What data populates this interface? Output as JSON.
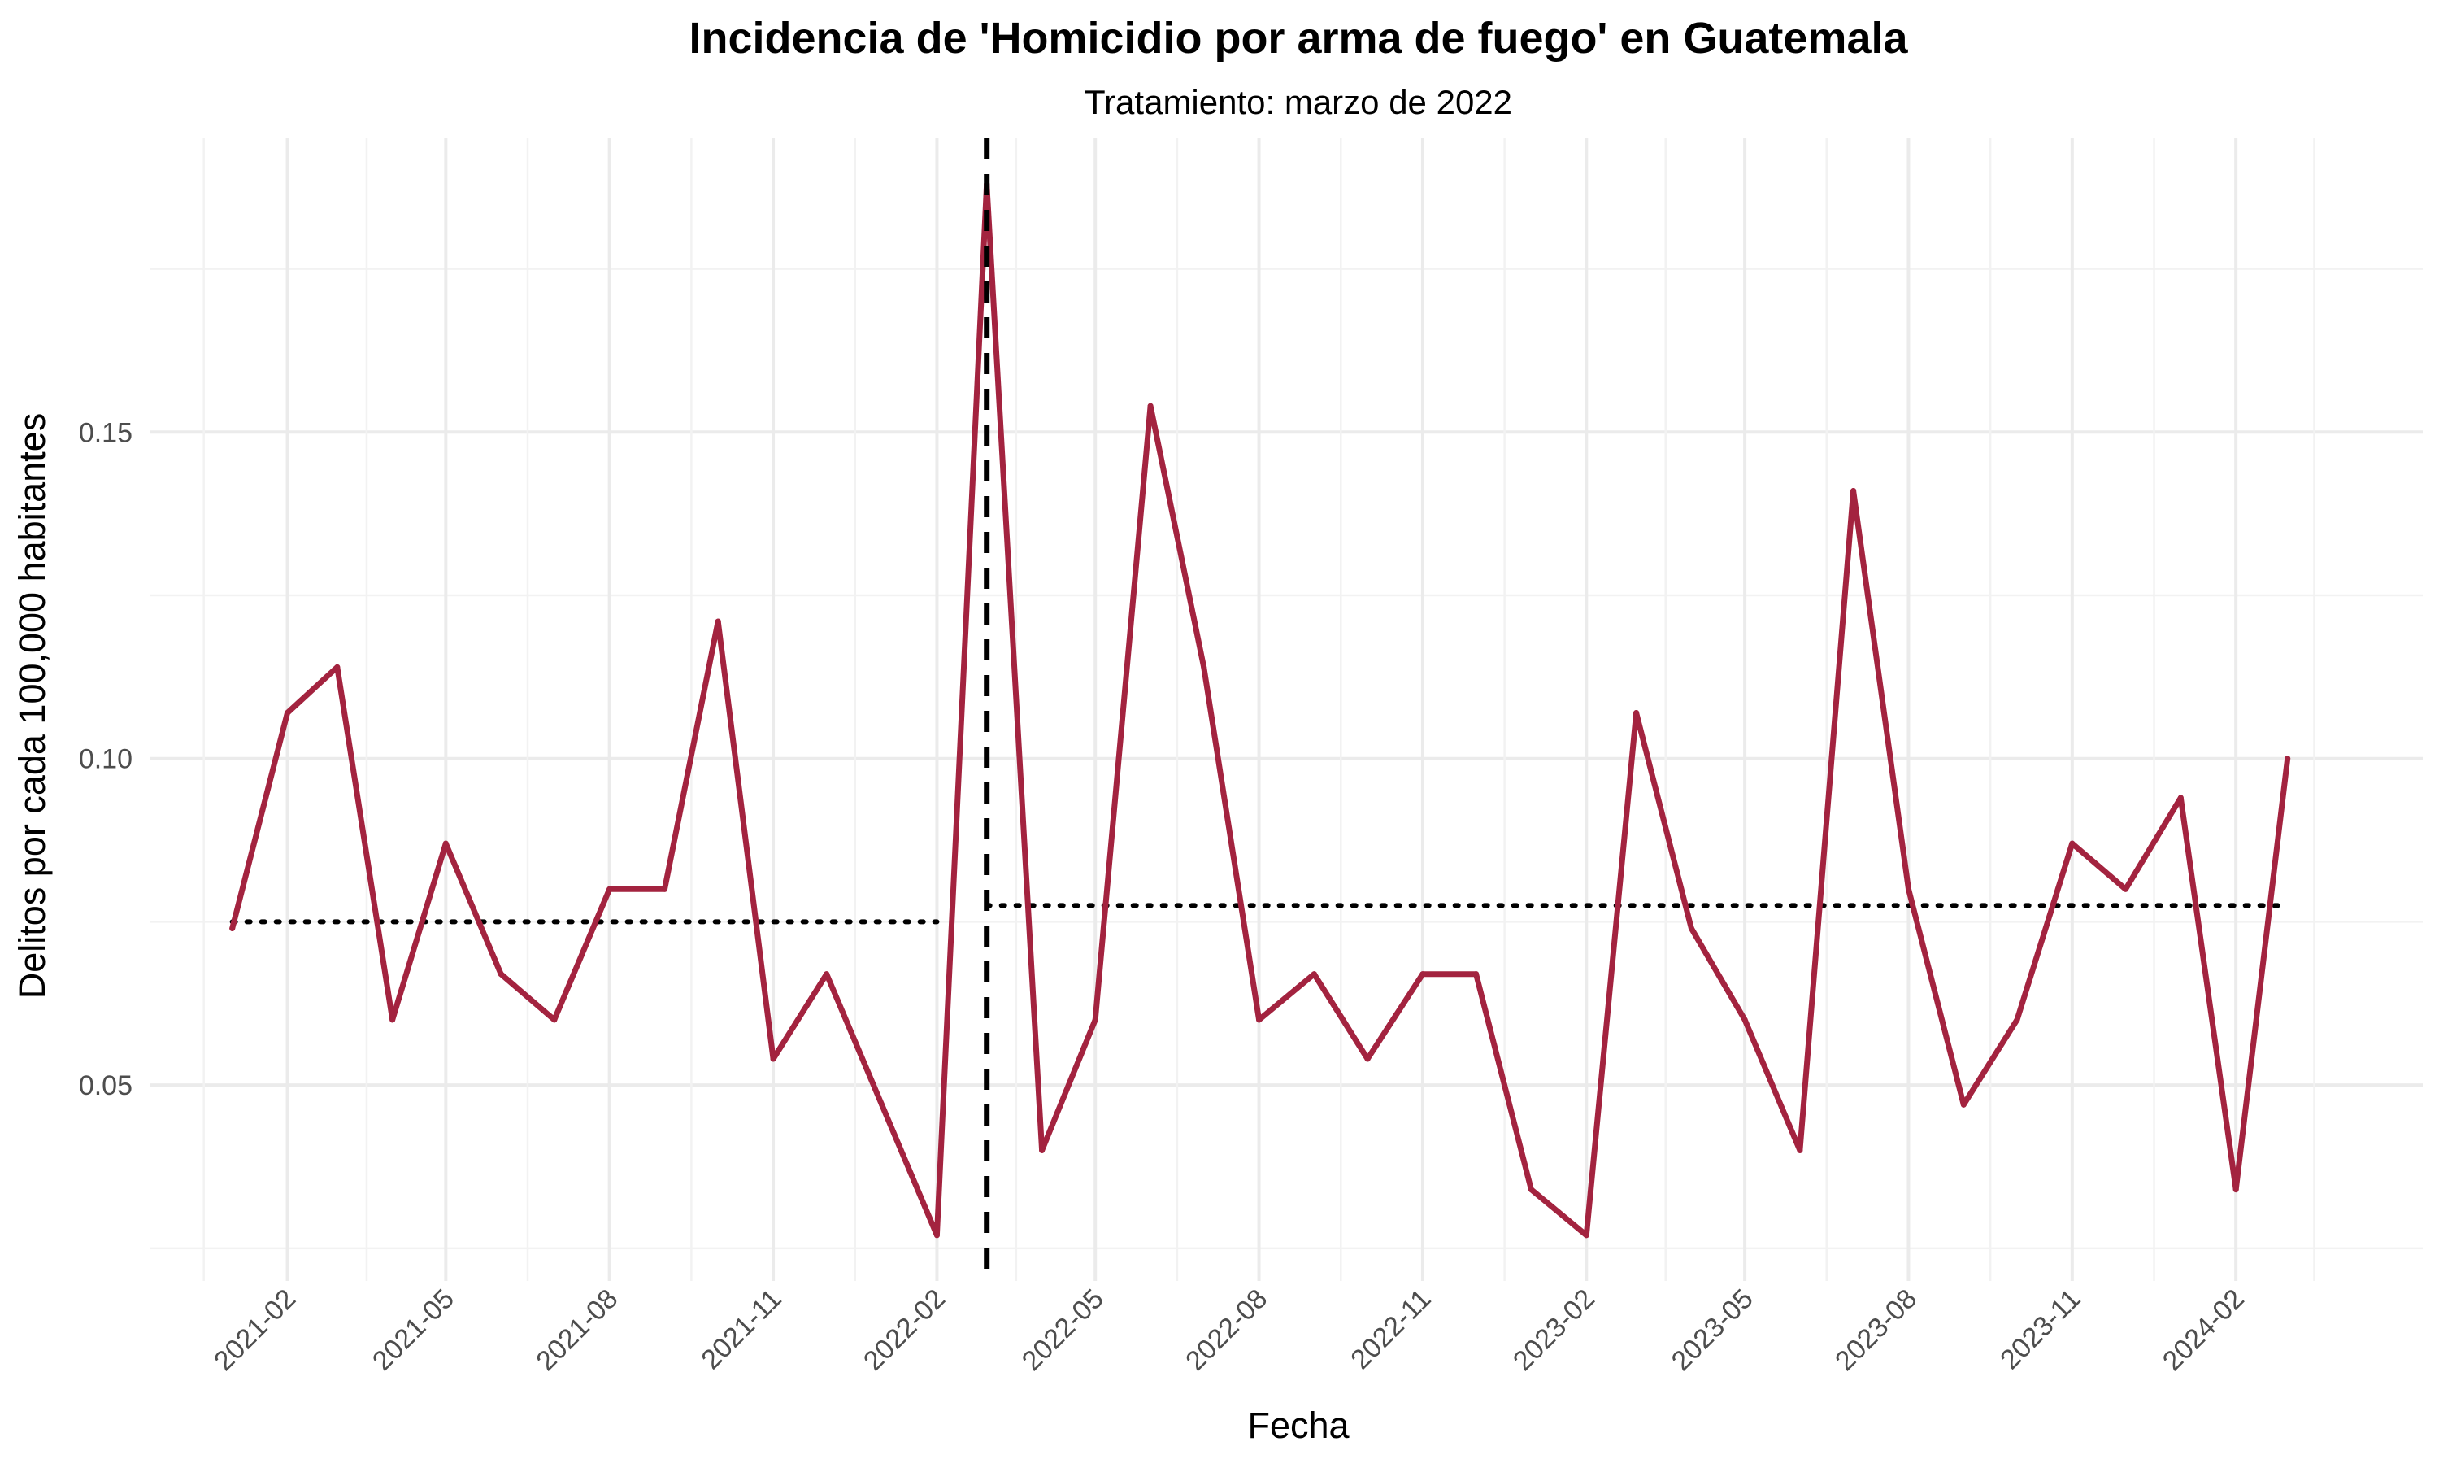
{
  "chart_data": {
    "type": "line",
    "title": "Incidencia de 'Homicidio por arma de fuego' en Guatemala",
    "subtitle": "Tratamiento: marzo de 2022",
    "xlabel": "Fecha",
    "ylabel": "Delitos por cada 100,000 habitantes",
    "x_tick_labels": [
      "2021-02",
      "2021-05",
      "2021-08",
      "2021-11",
      "2022-02",
      "2022-05",
      "2022-08",
      "2022-11",
      "2023-02",
      "2023-05",
      "2023-08",
      "2023-11",
      "2024-02"
    ],
    "y_tick_labels": [
      "0.05",
      "0.10",
      "0.15"
    ],
    "y_ticks": [
      0.05,
      0.1,
      0.15
    ],
    "ylim": [
      0.02,
      0.195
    ],
    "xlim": [
      "2020-11-16",
      "2024-05-16"
    ],
    "grid": true,
    "colors": {
      "series": "#A3233F",
      "treatment_line": "#000000",
      "mean_line": "#000000"
    },
    "series": [
      {
        "x": [
          "2021-01",
          "2021-02",
          "2021-03",
          "2021-04",
          "2021-05",
          "2021-06",
          "2021-07",
          "2021-08",
          "2021-09",
          "2021-10",
          "2021-11",
          "2021-12",
          "2022-01",
          "2022-02",
          "2022-03",
          "2022-04",
          "2022-05",
          "2022-06",
          "2022-07",
          "2022-08",
          "2022-09",
          "2022-10",
          "2022-11",
          "2022-12",
          "2023-01",
          "2023-02",
          "2023-03",
          "2023-04",
          "2023-05",
          "2023-06",
          "2023-07",
          "2023-08",
          "2023-09",
          "2023-10",
          "2023-11",
          "2023-12",
          "2024-01",
          "2024-02",
          "2024-03"
        ],
        "values": [
          0.074,
          0.107,
          0.114,
          0.06,
          0.087,
          0.067,
          0.06,
          0.08,
          0.08,
          0.121,
          0.054,
          0.067,
          0.047,
          0.027,
          0.188,
          0.04,
          0.06,
          0.154,
          0.114,
          0.06,
          0.067,
          0.054,
          0.067,
          0.067,
          0.034,
          0.027,
          0.107,
          0.074,
          0.06,
          0.04,
          0.141,
          0.08,
          0.047,
          0.06,
          0.087,
          0.08,
          0.094,
          0.034,
          0.1
        ]
      }
    ],
    "treatment_date": "2022-03",
    "pre_mean": {
      "x_start": "2021-01",
      "x_end": "2022-02",
      "value": 0.075
    },
    "post_mean": {
      "x_start": "2022-03",
      "x_end": "2024-03",
      "value": 0.0775
    }
  }
}
